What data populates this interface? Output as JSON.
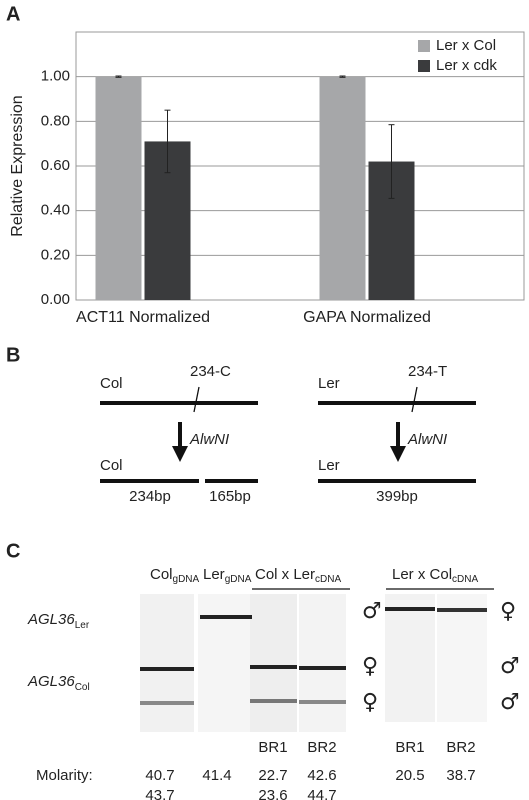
{
  "labels": {
    "a": "A",
    "b": "B",
    "c": "C"
  },
  "chart_data": {
    "type": "bar",
    "ylabel": "Relative Expression",
    "categories": [
      "ACT11 Normalized",
      "GAPA Normalized"
    ],
    "series": [
      {
        "name": "Ler x Col",
        "color": "#a6a7a9",
        "values": [
          1.0,
          1.0
        ],
        "errors": [
          0.003,
          0.003
        ]
      },
      {
        "name": "Ler x cdk",
        "color": "#3a3b3d",
        "values": [
          0.71,
          0.62
        ],
        "errors": [
          0.14,
          0.165
        ]
      }
    ],
    "ylim": [
      0,
      1.2
    ],
    "yticks": [
      {
        "value": 0,
        "label": "0.00"
      },
      {
        "value": 0.2,
        "label": "0.20"
      },
      {
        "value": 0.4,
        "label": "0.40"
      },
      {
        "value": 0.6,
        "label": "0.60"
      },
      {
        "value": 0.8,
        "label": "0.80"
      },
      {
        "value": 1.0,
        "label": "1.00"
      }
    ],
    "grid": true,
    "legend": "top-right"
  },
  "panel_b": {
    "left": {
      "strain": "Col",
      "site": "234-C",
      "enzyme": "AlwNI",
      "product": "Col",
      "fragments": [
        "234bp",
        "165bp"
      ]
    },
    "right": {
      "strain": "Ler",
      "site": "234-T",
      "enzyme": "AlwNI",
      "product": "Ler",
      "fragments": [
        "399bp"
      ]
    }
  },
  "panel_c": {
    "lanes": [
      {
        "main": "Col",
        "sub": "gDNA"
      },
      {
        "main": "Ler",
        "sub": "gDNA"
      }
    ],
    "groups": [
      {
        "main": "Col x Ler",
        "sub": "cDNA"
      },
      {
        "main": "Ler x Col",
        "sub": "cDNA"
      }
    ],
    "rows": [
      {
        "main": "AGL36",
        "sub": "Ler"
      },
      {
        "main": "AGL36",
        "sub": "Col"
      }
    ],
    "symbols_left": [
      "♂",
      "♀",
      "♀"
    ],
    "symbols_right": [
      "♀",
      "♂",
      "♂"
    ],
    "replicates": [
      "BR1",
      "BR2",
      "BR1",
      "BR2"
    ],
    "molarity": {
      "label": "Molarity:",
      "values": [
        [
          40.7,
          43.7
        ],
        [
          41.4
        ],
        [
          22.7,
          23.6
        ],
        [
          42.6,
          44.7
        ],
        [
          20.5
        ],
        [
          38.7
        ]
      ]
    }
  }
}
